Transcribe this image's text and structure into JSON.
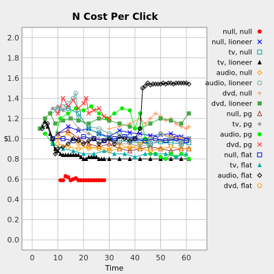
{
  "chart_data": {
    "type": "scatter",
    "title": "N Cost Per Click",
    "xlabel": "Time",
    "ylabel": "$",
    "xlim": [
      -4,
      68
    ],
    "ylim": [
      -0.1,
      2.1
    ],
    "xticks": [
      "0",
      "10",
      "20",
      "30",
      "40",
      "50",
      "60"
    ],
    "xtick_values": [
      0,
      10,
      20,
      30,
      40,
      50,
      60
    ],
    "yticks": [
      "0.0",
      "0.2",
      "0.4",
      "0.6",
      "0.8",
      "1.0",
      "1.2",
      "1.4",
      "1.6",
      "1.8",
      "2.0"
    ],
    "ytick_values": [
      0.0,
      0.2,
      0.4,
      0.6,
      0.8,
      1.0,
      1.2,
      1.4,
      1.6,
      1.8,
      2.0
    ],
    "grid": true,
    "legend_position": "right",
    "series": [
      {
        "name": "null, null",
        "color": "#ff0000",
        "marker": "dot",
        "x": [
          11,
          12,
          13,
          14,
          15,
          16,
          17,
          18,
          19,
          20,
          21,
          22,
          23,
          24,
          25,
          26,
          27,
          28
        ],
        "y": [
          0.59,
          0.59,
          0.63,
          0.62,
          0.59,
          0.6,
          0.61,
          0.59,
          0.59,
          0.59,
          0.59,
          0.59,
          0.59,
          0.59,
          0.59,
          0.59,
          0.59,
          0.59
        ]
      },
      {
        "name": "null, lioneer",
        "color": "#0000ff",
        "marker": "x",
        "x": [
          10,
          14,
          18,
          22,
          26,
          30,
          34,
          38,
          42,
          46,
          50,
          54,
          58,
          61
        ],
        "y": [
          1.05,
          1.12,
          1.08,
          1.1,
          1.05,
          1.02,
          1.08,
          1.06,
          1.05,
          1.03,
          1.04,
          1.05,
          1.02,
          1.0
        ]
      },
      {
        "name": "tv, null",
        "color": "#009999",
        "marker": "square-open",
        "x": [
          10,
          14,
          18,
          22,
          26,
          30,
          34,
          38,
          42,
          46,
          50,
          54,
          58,
          61
        ],
        "y": [
          1.28,
          1.3,
          1.25,
          1.1,
          1.05,
          1.0,
          0.98,
          0.97,
          0.96,
          0.95,
          0.97,
          0.96,
          0.95,
          0.96
        ]
      },
      {
        "name": "tv, lioneer",
        "color": "#000000",
        "marker": "triangle",
        "x": [
          3,
          4,
          5,
          6,
          7,
          8,
          9,
          10,
          11,
          12,
          13,
          14,
          15,
          16,
          17,
          18,
          19,
          20,
          21,
          22,
          23,
          24,
          25,
          26,
          27,
          28,
          30,
          34,
          38,
          42,
          46,
          50,
          54,
          58,
          61
        ],
        "y": [
          1.1,
          1.12,
          1.17,
          1.12,
          1.05,
          0.95,
          0.9,
          0.88,
          0.85,
          0.84,
          0.84,
          0.84,
          0.84,
          0.84,
          0.84,
          0.84,
          0.82,
          0.8,
          0.8,
          0.82,
          0.82,
          0.82,
          0.82,
          0.8,
          0.8,
          0.8,
          0.8,
          0.8,
          0.8,
          0.8,
          0.8,
          0.8,
          0.8,
          0.8,
          0.8
        ]
      },
      {
        "name": "audio, null",
        "color": "#ff9900",
        "marker": "diamond-open",
        "x": [
          10,
          14,
          18,
          22,
          26,
          30,
          34,
          38,
          42,
          46,
          50,
          54,
          58,
          61
        ],
        "y": [
          1.0,
          1.05,
          0.95,
          0.9,
          0.92,
          0.9,
          0.95,
          0.9,
          0.95,
          1.0,
          1.05,
          1.02,
          1.0,
          1.0
        ]
      },
      {
        "name": "audio, lioneer",
        "color": "#66aaaa",
        "marker": "circle-open",
        "x": [
          8,
          10,
          12,
          14,
          16,
          17,
          18,
          22,
          26,
          30,
          34,
          38,
          42,
          46,
          50,
          54,
          58,
          61
        ],
        "y": [
          1.28,
          1.3,
          1.32,
          1.35,
          1.4,
          1.45,
          1.2,
          1.12,
          1.1,
          1.05,
          1.05,
          1.02,
          1.0,
          1.0,
          1.05,
          1.0,
          0.98,
          1.0
        ]
      },
      {
        "name": "dvd, null",
        "color": "#ff9966",
        "marker": "plus",
        "x": [
          30,
          34,
          38,
          42,
          44,
          46,
          48,
          50,
          52,
          54,
          56,
          58,
          60,
          61
        ],
        "y": [
          1.1,
          1.12,
          1.15,
          1.2,
          1.15,
          1.2,
          1.25,
          1.22,
          1.18,
          1.2,
          1.15,
          1.12,
          1.1,
          1.12
        ]
      },
      {
        "name": "dvd, lioneer",
        "color": "#44aa44",
        "marker": "square",
        "x": [
          3,
          5,
          7,
          9,
          12,
          15,
          18,
          22,
          26,
          30,
          34,
          38,
          42,
          46,
          50,
          54,
          58,
          61
        ],
        "y": [
          1.1,
          1.2,
          1.25,
          1.15,
          1.18,
          1.2,
          1.18,
          1.15,
          1.2,
          1.18,
          1.15,
          1.12,
          1.1,
          1.15,
          1.2,
          1.18,
          1.15,
          1.25
        ]
      },
      {
        "name": "null, pg",
        "color": "#993333",
        "marker": "triangle-open",
        "x": [
          10,
          14,
          18,
          22,
          26,
          30,
          34,
          38,
          42,
          46,
          50,
          54,
          58,
          61
        ],
        "y": [
          1.05,
          1.08,
          1.0,
          0.95,
          0.92,
          0.95,
          0.9,
          0.88,
          0.9,
          0.92,
          0.9,
          0.88,
          0.9,
          0.9
        ]
      },
      {
        "name": "tv, pg",
        "color": "#999999",
        "marker": "diamond",
        "x": [
          8,
          10,
          12,
          14,
          18,
          22,
          26,
          30,
          34,
          38,
          42,
          46,
          50,
          54,
          58,
          61
        ],
        "y": [
          1.3,
          1.32,
          1.28,
          1.25,
          1.1,
          1.05,
          1.0,
          0.98,
          0.95,
          0.95,
          0.92,
          0.95,
          0.98,
          1.0,
          0.95,
          0.98
        ]
      },
      {
        "name": "audio, pg",
        "color": "#00ee00",
        "marker": "dot",
        "x": [
          5,
          8,
          11,
          14,
          17,
          20,
          23,
          26,
          29,
          32,
          35,
          38,
          40,
          42,
          44,
          46,
          48,
          50,
          52,
          54,
          56,
          58,
          61
        ],
        "y": [
          1.05,
          0.95,
          1.2,
          1.25,
          1.3,
          1.28,
          1.32,
          1.25,
          1.2,
          1.25,
          1.3,
          1.28,
          1.1,
          1.25,
          1.0,
          0.85,
          0.85,
          0.82,
          0.8,
          0.85,
          0.82,
          0.85,
          0.8
        ]
      },
      {
        "name": "dvd, pg",
        "color": "#ff3333",
        "marker": "x",
        "x": [
          10,
          12,
          14,
          16,
          18,
          20,
          21,
          22,
          24,
          26,
          28,
          30
        ],
        "y": [
          1.25,
          1.4,
          1.32,
          1.38,
          1.3,
          1.35,
          1.4,
          1.25,
          1.28,
          1.3,
          1.22,
          1.2
        ]
      },
      {
        "name": "null, flat",
        "color": "#0000cc",
        "marker": "square-open",
        "x": [
          8,
          12,
          16,
          20,
          24,
          28,
          32,
          36,
          40,
          44,
          48,
          52,
          56,
          60
        ],
        "y": [
          1.0,
          1.0,
          0.98,
          1.02,
          1.0,
          0.98,
          1.0,
          1.02,
          1.0,
          0.98,
          1.0,
          0.98,
          1.0,
          0.98
        ]
      },
      {
        "name": "tv, flat",
        "color": "#00aaaa",
        "marker": "triangle",
        "x": [
          8,
          12,
          16,
          20,
          24,
          28,
          32,
          36,
          40,
          44,
          48,
          52,
          56,
          60
        ],
        "y": [
          0.95,
          0.9,
          0.88,
          0.85,
          0.85,
          0.88,
          0.85,
          0.85,
          0.82,
          0.85,
          0.85,
          0.85,
          0.82,
          0.85
        ]
      },
      {
        "name": "audio, flat",
        "color": "#000000",
        "marker": "diamond-open",
        "x": [
          4,
          6,
          8,
          9,
          10,
          12,
          14,
          16,
          18,
          20,
          22,
          24,
          26,
          28,
          30,
          32,
          34,
          36,
          38,
          40,
          42,
          43,
          44,
          45,
          46,
          47,
          48,
          49,
          50,
          51,
          52,
          53,
          54,
          55,
          56,
          57,
          58,
          59,
          60,
          61
        ],
        "y": [
          1.1,
          1.15,
          1.0,
          0.85,
          0.9,
          0.92,
          0.95,
          1.0,
          0.98,
          0.95,
          0.98,
          1.0,
          0.95,
          0.98,
          1.0,
          0.95,
          1.02,
          1.0,
          0.98,
          1.0,
          1.1,
          1.5,
          1.52,
          1.55,
          1.53,
          1.54,
          1.54,
          1.54,
          1.54,
          1.55,
          1.54,
          1.55,
          1.55,
          1.54,
          1.55,
          1.55,
          1.55,
          1.55,
          1.55,
          1.54
        ]
      },
      {
        "name": "dvd, flat",
        "color": "#ff9900",
        "marker": "circle-open",
        "x": [
          10,
          14,
          18,
          22,
          26,
          30,
          34,
          38,
          42,
          46,
          50,
          54,
          58,
          61
        ],
        "y": [
          0.95,
          0.92,
          0.9,
          0.92,
          0.9,
          0.88,
          0.9,
          0.92,
          0.9,
          0.88,
          0.9,
          0.92,
          0.9,
          0.9
        ]
      }
    ]
  }
}
